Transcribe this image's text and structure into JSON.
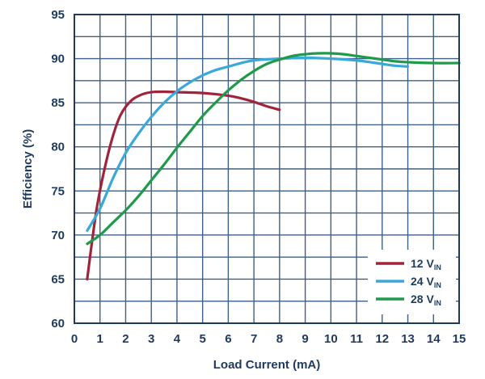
{
  "chart_data": {
    "type": "line",
    "title": "",
    "xlabel": "Load Current (mA)",
    "ylabel": "Efficiency (%)",
    "xlim": [
      0,
      15
    ],
    "ylim": [
      60,
      95
    ],
    "xticks": [
      "0",
      "1",
      "2",
      "3",
      "4",
      "5",
      "6",
      "7",
      "8",
      "9",
      "10",
      "11",
      "12",
      "13",
      "14",
      "15"
    ],
    "yticks": [
      "60",
      "65",
      "70",
      "75",
      "80",
      "85",
      "90",
      "95"
    ],
    "grid": true,
    "legend_position": "bottom-right",
    "series": [
      {
        "name": "12 V",
        "name_sub": "IN",
        "color": "#a0243a",
        "points": [
          [
            0.5,
            65.0
          ],
          [
            0.7,
            69.5
          ],
          [
            0.9,
            73.5
          ],
          [
            1.2,
            77.8
          ],
          [
            1.5,
            81.2
          ],
          [
            1.8,
            83.6
          ],
          [
            2.2,
            85.2
          ],
          [
            2.6,
            85.9
          ],
          [
            3.0,
            86.2
          ],
          [
            3.5,
            86.25
          ],
          [
            4.0,
            86.2
          ],
          [
            5.0,
            86.1
          ],
          [
            6.0,
            85.8
          ],
          [
            6.5,
            85.5
          ],
          [
            7.0,
            85.1
          ],
          [
            7.5,
            84.6
          ],
          [
            8.0,
            84.2
          ]
        ]
      },
      {
        "name": "24 V",
        "name_sub": "IN",
        "color": "#3aa8d8",
        "points": [
          [
            0.5,
            70.5
          ],
          [
            1.0,
            73.0
          ],
          [
            1.5,
            76.4
          ],
          [
            2.0,
            79.3
          ],
          [
            2.5,
            81.5
          ],
          [
            3.0,
            83.4
          ],
          [
            3.5,
            85.0
          ],
          [
            4.0,
            86.3
          ],
          [
            4.5,
            87.3
          ],
          [
            5.0,
            88.1
          ],
          [
            5.5,
            88.7
          ],
          [
            6.0,
            89.1
          ],
          [
            6.5,
            89.5
          ],
          [
            7.0,
            89.8
          ],
          [
            8.0,
            90.0
          ],
          [
            9.0,
            90.1
          ],
          [
            10.0,
            90.0
          ],
          [
            11.0,
            89.8
          ],
          [
            12.0,
            89.4
          ],
          [
            12.5,
            89.2
          ],
          [
            13.0,
            89.1
          ]
        ]
      },
      {
        "name": "28 V",
        "name_sub": "IN",
        "color": "#1e9a4a",
        "points": [
          [
            0.5,
            69.0
          ],
          [
            1.0,
            70.0
          ],
          [
            1.5,
            71.4
          ],
          [
            2.0,
            72.8
          ],
          [
            2.5,
            74.4
          ],
          [
            3.0,
            76.2
          ],
          [
            3.5,
            78.0
          ],
          [
            4.0,
            79.9
          ],
          [
            4.5,
            81.7
          ],
          [
            5.0,
            83.5
          ],
          [
            5.5,
            85.0
          ],
          [
            6.0,
            86.4
          ],
          [
            6.5,
            87.6
          ],
          [
            7.0,
            88.6
          ],
          [
            7.5,
            89.4
          ],
          [
            8.0,
            89.9
          ],
          [
            8.5,
            90.3
          ],
          [
            9.0,
            90.5
          ],
          [
            9.5,
            90.6
          ],
          [
            10.0,
            90.6
          ],
          [
            10.5,
            90.5
          ],
          [
            11.0,
            90.3
          ],
          [
            11.5,
            90.1
          ],
          [
            12.0,
            89.9
          ],
          [
            12.5,
            89.7
          ],
          [
            13.0,
            89.6
          ],
          [
            14.0,
            89.5
          ],
          [
            15.0,
            89.5
          ]
        ]
      }
    ]
  }
}
